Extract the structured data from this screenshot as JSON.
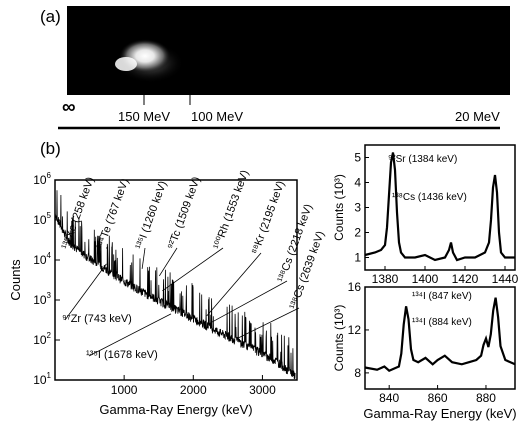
{
  "panel_a": {
    "label": "(a)",
    "energy_labels": [
      "∞",
      "150 MeV",
      "100 MeV",
      "20 MeV"
    ],
    "background_color": "#000000"
  },
  "panel_b": {
    "label": "(b)"
  },
  "chart_data": [
    {
      "type": "line",
      "id": "main-spectrum",
      "xlabel": "Gamma-Ray Energy (keV)",
      "ylabel": "Counts",
      "yscale": "log",
      "xlim": [
        0,
        3500
      ],
      "ylim": [
        10,
        1000000
      ],
      "x_ticks": [
        1000,
        2000,
        3000
      ],
      "y_ticks": [
        {
          "value": 10,
          "base": "10",
          "exp": "1"
        },
        {
          "value": 100,
          "base": "10",
          "exp": "2"
        },
        {
          "value": 1000,
          "base": "10",
          "exp": "3"
        },
        {
          "value": 10000,
          "base": "10",
          "exp": "4"
        },
        {
          "value": 100000,
          "base": "10",
          "exp": "5"
        },
        {
          "value": 1000000,
          "base": "10",
          "exp": "6"
        }
      ],
      "envelope": {
        "x": [
          0,
          100,
          200,
          300,
          500,
          800,
          1000,
          1300,
          1600,
          2000,
          2400,
          2800,
          3200,
          3500
        ],
        "y": [
          150000,
          60000,
          30000,
          20000,
          11000,
          5000,
          3000,
          1500,
          800,
          350,
          150,
          70,
          30,
          12
        ]
      },
      "annotations": [
        {
          "text": "¹³⁵Xe (258 keV)",
          "x": 258,
          "y": 120000
        },
        {
          "text": "¹³⁴Te (767 keV)",
          "x": 767,
          "y": 20000
        },
        {
          "text": "¹³⁵I (1260 keV)",
          "x": 1260,
          "y": 6000
        },
        {
          "text": "⁹²Tc (1509 keV)",
          "x": 1509,
          "y": 4000
        },
        {
          "text": "¹⁰⁰Rh (1553 keV)",
          "x": 1553,
          "y": 1700
        },
        {
          "text": "⁸⁸Kr (2195 keV)",
          "x": 2195,
          "y": 400
        },
        {
          "text": "¹³⁸Cs (2218 keV)",
          "x": 2218,
          "y": 250
        },
        {
          "text": "¹³⁸Cs (2639 keV)",
          "x": 2639,
          "y": 110
        },
        {
          "text": "⁹⁷Zr (743 keV)",
          "x": 743,
          "y": 8000
        },
        {
          "text": "¹³⁵I (1678 keV)",
          "x": 1678,
          "y": 450
        }
      ]
    },
    {
      "type": "line",
      "id": "inset-top",
      "xlabel": "",
      "ylabel": "Counts (10³)",
      "xlim": [
        1370,
        1445
      ],
      "ylim": [
        0.5,
        5.5
      ],
      "x_ticks": [
        1380,
        1400,
        1420,
        1440
      ],
      "y_ticks": [
        1,
        2,
        3,
        4,
        5
      ],
      "x": [
        1370,
        1375,
        1378,
        1380,
        1381,
        1382,
        1383,
        1384,
        1385,
        1386,
        1387,
        1388,
        1390,
        1395,
        1400,
        1405,
        1410,
        1412,
        1413,
        1414,
        1416,
        1420,
        1425,
        1430,
        1432,
        1433,
        1434,
        1435,
        1436,
        1437,
        1438,
        1440,
        1445
      ],
      "y": [
        1.1,
        1.2,
        1.3,
        1.5,
        2.2,
        3.5,
        4.8,
        5.2,
        4.5,
        2.8,
        1.6,
        1.2,
        1.0,
        1.0,
        1.1,
        0.9,
        1.0,
        1.3,
        1.6,
        1.2,
        0.9,
        1.0,
        1.0,
        1.2,
        1.6,
        2.5,
        3.8,
        4.3,
        3.6,
        2.0,
        1.2,
        1.0,
        1.0
      ],
      "annotations": [
        {
          "text": "⁹²Sr (1384 keV)",
          "x": 1384,
          "y": 5.2
        },
        {
          "text": "¹³⁸Cs (1436 keV)",
          "x": 1436,
          "y": 4.3
        }
      ]
    },
    {
      "type": "line",
      "id": "inset-bottom",
      "xlabel": "Gamma-Ray Energy (keV)",
      "ylabel": "Counts (10³)",
      "xlim": [
        830,
        892
      ],
      "ylim": [
        6.5,
        16
      ],
      "x_ticks": [
        840,
        860,
        880
      ],
      "y_ticks": [
        8,
        12,
        16
      ],
      "x": [
        830,
        835,
        838,
        840,
        842,
        844,
        845,
        846,
        847,
        848,
        849,
        850,
        852,
        855,
        858,
        860,
        863,
        866,
        870,
        873,
        876,
        878,
        879,
        880,
        881,
        882,
        883,
        884,
        885,
        886,
        888,
        892
      ],
      "y": [
        8.5,
        8.3,
        8.6,
        8.2,
        8.4,
        8.6,
        9.8,
        12.5,
        14.2,
        13.0,
        10.2,
        9.2,
        9.0,
        9.4,
        8.8,
        9.2,
        9.6,
        9.0,
        8.8,
        9.0,
        9.2,
        9.6,
        10.6,
        11.2,
        10.4,
        11.6,
        13.8,
        15.0,
        13.2,
        10.5,
        9.2,
        8.8
      ],
      "annotations": [
        {
          "text": "¹³⁴I (847 keV)",
          "x": 847,
          "y": 14.2
        },
        {
          "text": "¹³⁴I (884 keV)",
          "x": 884,
          "y": 15.0
        }
      ]
    }
  ]
}
